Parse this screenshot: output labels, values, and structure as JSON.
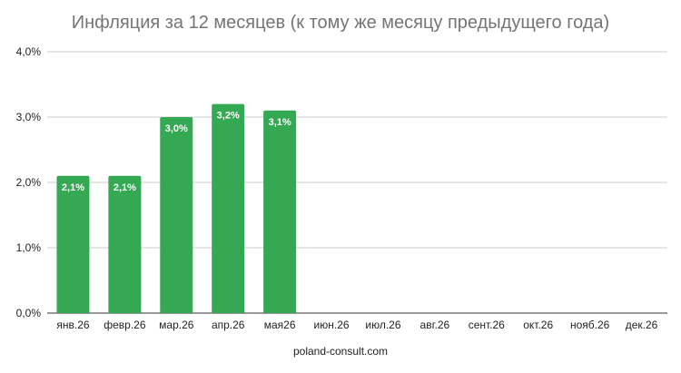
{
  "chart_data": {
    "type": "bar",
    "title": "Инфляция за 12 месяцев (к тому же месяцу предыдущего года)",
    "xlabel": "poland-consult.com",
    "ylabel": "",
    "categories": [
      "янв.26",
      "февр.26",
      "мар.26",
      "апр.26",
      "мая26",
      "июн.26",
      "июл.26",
      "авг.26",
      "сент.26",
      "окт.26",
      "нояб.26",
      "дек.26"
    ],
    "values": [
      2.1,
      2.1,
      3.0,
      3.2,
      3.1,
      null,
      null,
      null,
      null,
      null,
      null,
      null
    ],
    "data_labels": [
      "2,1%",
      "2,1%",
      "3,0%",
      "3,2%",
      "3,1%",
      "",
      "",
      "",
      "",
      "",
      "",
      ""
    ],
    "ylim": [
      0,
      4
    ],
    "y_ticks": [
      0,
      1,
      2,
      3,
      4
    ],
    "y_tick_labels": [
      "0,0%",
      "1,0%",
      "2,0%",
      "3,0%",
      "4,0%"
    ],
    "grid": true,
    "legend": "none",
    "colors": {
      "bar": "#34a853",
      "grid": "#cccccc",
      "baseline": "#333333",
      "title": "#757575",
      "tick_label": "#222222",
      "data_label": "#ffffff"
    }
  }
}
